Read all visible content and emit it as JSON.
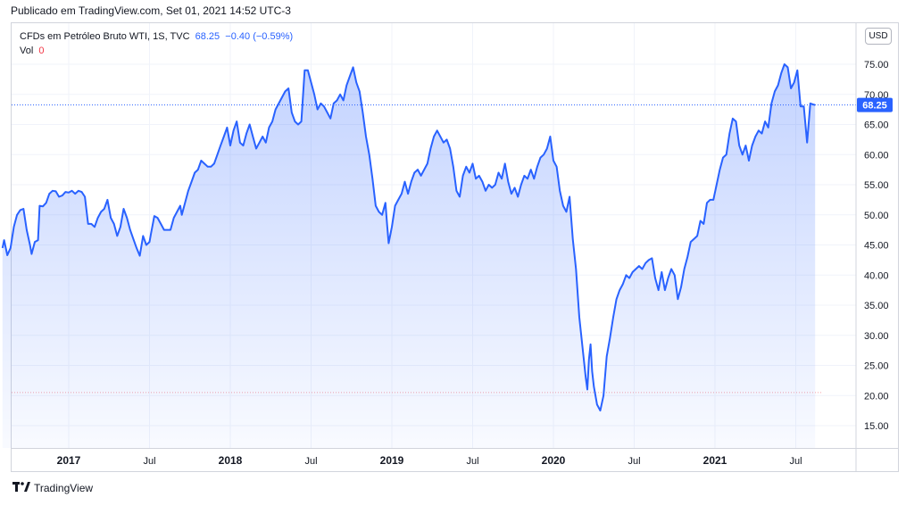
{
  "published": "Publicado em TradingView.com, Set 01, 2021 14:52 UTC-3",
  "legend": {
    "symbol": "CFDs em Petróleo Bruto WTI, 1S, TVC",
    "last": "68.25",
    "change": "−0.40",
    "change_pct": "(−0.59%)",
    "vol_label": "Vol",
    "vol_value": "0"
  },
  "currency_button": "USD",
  "last_price_label": "68.25",
  "footer": {
    "logo_icon": "tradingview-logo-icon",
    "brand": "TradingView"
  },
  "colors": {
    "line": "#2962ff",
    "fill": "#2962ff",
    "last_price_bg": "#2962ff",
    "axis_text": "#131722",
    "grid": "#f0f3fa",
    "dotted_red": "#f7a1a8"
  },
  "chart_data": {
    "type": "area",
    "title": "CFDs em Petróleo Bruto WTI, 1S, TVC",
    "xlabel": "",
    "ylabel": "",
    "ylim": [
      12,
      79
    ],
    "y_ticks": [
      15,
      20,
      25,
      30,
      35,
      40,
      45,
      50,
      55,
      60,
      65,
      70,
      75
    ],
    "y_tick_labels": [
      "15.00",
      "20.00",
      "25.00",
      "30.00",
      "35.00",
      "40.00",
      "45.00",
      "50.00",
      "55.00",
      "60.00",
      "65.00",
      "70.00",
      "75.00"
    ],
    "x_ticks": [
      {
        "t": 2017.0,
        "label": "2017"
      },
      {
        "t": 2017.5,
        "label": "Jul"
      },
      {
        "t": 2018.0,
        "label": "2018"
      },
      {
        "t": 2018.5,
        "label": "Jul"
      },
      {
        "t": 2019.0,
        "label": "2019"
      },
      {
        "t": 2019.5,
        "label": "Jul"
      },
      {
        "t": 2020.0,
        "label": "2020"
      },
      {
        "t": 2020.5,
        "label": "Jul"
      },
      {
        "t": 2021.0,
        "label": "2021"
      },
      {
        "t": 2021.5,
        "label": "Jul"
      }
    ],
    "xlim": [
      2016.59,
      2022.0
    ],
    "last_price": 68.25,
    "reference_line": 20.5,
    "grid": true,
    "series": [
      {
        "name": "",
        "points": [
          [
            2016.59,
            44.5
          ],
          [
            2016.6,
            45.8
          ],
          [
            2016.62,
            43.3
          ],
          [
            2016.64,
            44.5
          ],
          [
            2016.66,
            48.0
          ],
          [
            2016.68,
            50.0
          ],
          [
            2016.7,
            50.8
          ],
          [
            2016.72,
            51.0
          ],
          [
            2016.74,
            47.5
          ],
          [
            2016.76,
            45.0
          ],
          [
            2016.77,
            43.5
          ],
          [
            2016.79,
            45.5
          ],
          [
            2016.81,
            45.8
          ],
          [
            2016.82,
            51.5
          ],
          [
            2016.84,
            51.4
          ],
          [
            2016.86,
            52.0
          ],
          [
            2016.88,
            53.5
          ],
          [
            2016.9,
            54.0
          ],
          [
            2016.92,
            53.9
          ],
          [
            2016.94,
            53.0
          ],
          [
            2016.96,
            53.2
          ],
          [
            2016.98,
            53.8
          ],
          [
            2017.0,
            53.7
          ],
          [
            2017.02,
            54.0
          ],
          [
            2017.04,
            53.5
          ],
          [
            2017.06,
            54.0
          ],
          [
            2017.08,
            53.8
          ],
          [
            2017.1,
            53.0
          ],
          [
            2017.12,
            48.5
          ],
          [
            2017.14,
            48.5
          ],
          [
            2017.16,
            48.0
          ],
          [
            2017.18,
            49.5
          ],
          [
            2017.2,
            50.5
          ],
          [
            2017.22,
            51.0
          ],
          [
            2017.24,
            52.5
          ],
          [
            2017.26,
            49.5
          ],
          [
            2017.28,
            48.5
          ],
          [
            2017.3,
            46.5
          ],
          [
            2017.32,
            48.0
          ],
          [
            2017.34,
            51.0
          ],
          [
            2017.36,
            49.5
          ],
          [
            2017.38,
            47.5
          ],
          [
            2017.4,
            46.0
          ],
          [
            2017.42,
            44.5
          ],
          [
            2017.44,
            43.2
          ],
          [
            2017.46,
            46.5
          ],
          [
            2017.48,
            45.0
          ],
          [
            2017.5,
            45.5
          ],
          [
            2017.51,
            47.0
          ],
          [
            2017.53,
            49.8
          ],
          [
            2017.55,
            49.5
          ],
          [
            2017.57,
            48.5
          ],
          [
            2017.59,
            47.5
          ],
          [
            2017.61,
            47.5
          ],
          [
            2017.63,
            47.5
          ],
          [
            2017.65,
            49.5
          ],
          [
            2017.67,
            50.5
          ],
          [
            2017.69,
            51.5
          ],
          [
            2017.7,
            50.0
          ],
          [
            2017.72,
            52.0
          ],
          [
            2017.74,
            54.0
          ],
          [
            2017.76,
            55.5
          ],
          [
            2017.78,
            57.0
          ],
          [
            2017.8,
            57.5
          ],
          [
            2017.82,
            59.0
          ],
          [
            2017.84,
            58.5
          ],
          [
            2017.86,
            58.0
          ],
          [
            2017.88,
            58.0
          ],
          [
            2017.9,
            58.5
          ],
          [
            2017.92,
            60.0
          ],
          [
            2017.94,
            61.5
          ],
          [
            2017.96,
            63.0
          ],
          [
            2017.98,
            64.5
          ],
          [
            2018.0,
            61.5
          ],
          [
            2018.02,
            64.0
          ],
          [
            2018.04,
            65.5
          ],
          [
            2018.06,
            62.0
          ],
          [
            2018.08,
            61.5
          ],
          [
            2018.1,
            63.5
          ],
          [
            2018.12,
            65.0
          ],
          [
            2018.14,
            63.0
          ],
          [
            2018.16,
            61.0
          ],
          [
            2018.18,
            62.0
          ],
          [
            2018.2,
            63.0
          ],
          [
            2018.22,
            62.0
          ],
          [
            2018.24,
            64.5
          ],
          [
            2018.26,
            65.5
          ],
          [
            2018.28,
            67.5
          ],
          [
            2018.3,
            68.5
          ],
          [
            2018.32,
            69.5
          ],
          [
            2018.34,
            70.5
          ],
          [
            2018.36,
            71.0
          ],
          [
            2018.38,
            67.0
          ],
          [
            2018.4,
            65.5
          ],
          [
            2018.42,
            65.0
          ],
          [
            2018.44,
            65.5
          ],
          [
            2018.46,
            74.0
          ],
          [
            2018.48,
            74.0
          ],
          [
            2018.5,
            72.0
          ],
          [
            2018.52,
            70.0
          ],
          [
            2018.54,
            67.5
          ],
          [
            2018.56,
            68.5
          ],
          [
            2018.58,
            68.0
          ],
          [
            2018.6,
            67.0
          ],
          [
            2018.62,
            66.0
          ],
          [
            2018.64,
            68.5
          ],
          [
            2018.66,
            69.0
          ],
          [
            2018.68,
            70.0
          ],
          [
            2018.7,
            69.0
          ],
          [
            2018.72,
            71.5
          ],
          [
            2018.74,
            73.0
          ],
          [
            2018.76,
            74.5
          ],
          [
            2018.78,
            72.0
          ],
          [
            2018.8,
            70.5
          ],
          [
            2018.82,
            67.0
          ],
          [
            2018.84,
            63.0
          ],
          [
            2018.86,
            60.0
          ],
          [
            2018.88,
            56.0
          ],
          [
            2018.9,
            51.5
          ],
          [
            2018.92,
            50.5
          ],
          [
            2018.94,
            50.0
          ],
          [
            2018.96,
            52.0
          ],
          [
            2018.97,
            48.5
          ],
          [
            2018.98,
            45.3
          ],
          [
            2019.0,
            48.0
          ],
          [
            2019.02,
            51.5
          ],
          [
            2019.04,
            52.5
          ],
          [
            2019.06,
            53.5
          ],
          [
            2019.08,
            55.5
          ],
          [
            2019.1,
            53.5
          ],
          [
            2019.12,
            55.5
          ],
          [
            2019.14,
            57.0
          ],
          [
            2019.16,
            57.5
          ],
          [
            2019.18,
            56.5
          ],
          [
            2019.2,
            57.5
          ],
          [
            2019.22,
            58.5
          ],
          [
            2019.24,
            61.0
          ],
          [
            2019.26,
            63.0
          ],
          [
            2019.28,
            64.0
          ],
          [
            2019.3,
            63.0
          ],
          [
            2019.32,
            62.0
          ],
          [
            2019.34,
            62.5
          ],
          [
            2019.36,
            61.0
          ],
          [
            2019.38,
            58.0
          ],
          [
            2019.4,
            54.0
          ],
          [
            2019.42,
            53.0
          ],
          [
            2019.44,
            56.5
          ],
          [
            2019.46,
            58.0
          ],
          [
            2019.48,
            57.0
          ],
          [
            2019.5,
            58.5
          ],
          [
            2019.52,
            56.0
          ],
          [
            2019.54,
            56.5
          ],
          [
            2019.56,
            55.5
          ],
          [
            2019.58,
            54.0
          ],
          [
            2019.6,
            55.0
          ],
          [
            2019.62,
            54.5
          ],
          [
            2019.64,
            55.0
          ],
          [
            2019.66,
            57.0
          ],
          [
            2019.68,
            56.0
          ],
          [
            2019.7,
            58.5
          ],
          [
            2019.72,
            55.5
          ],
          [
            2019.74,
            53.5
          ],
          [
            2019.76,
            54.5
          ],
          [
            2019.78,
            53.0
          ],
          [
            2019.8,
            55.0
          ],
          [
            2019.82,
            56.5
          ],
          [
            2019.84,
            56.0
          ],
          [
            2019.86,
            57.5
          ],
          [
            2019.88,
            56.0
          ],
          [
            2019.9,
            58.0
          ],
          [
            2019.92,
            59.5
          ],
          [
            2019.94,
            60.0
          ],
          [
            2019.96,
            61.0
          ],
          [
            2019.98,
            63.0
          ],
          [
            2020.0,
            59.0
          ],
          [
            2020.02,
            58.0
          ],
          [
            2020.04,
            54.0
          ],
          [
            2020.06,
            51.5
          ],
          [
            2020.08,
            50.5
          ],
          [
            2020.1,
            53.0
          ],
          [
            2020.12,
            46.0
          ],
          [
            2020.14,
            41.0
          ],
          [
            2020.16,
            33.0
          ],
          [
            2020.18,
            28.0
          ],
          [
            2020.2,
            23.0
          ],
          [
            2020.21,
            21.0
          ],
          [
            2020.22,
            26.0
          ],
          [
            2020.23,
            28.5
          ],
          [
            2020.24,
            24.0
          ],
          [
            2020.25,
            21.5
          ],
          [
            2020.27,
            18.5
          ],
          [
            2020.29,
            17.5
          ],
          [
            2020.31,
            20.0
          ],
          [
            2020.33,
            26.5
          ],
          [
            2020.35,
            29.5
          ],
          [
            2020.37,
            33.0
          ],
          [
            2020.39,
            36.0
          ],
          [
            2020.41,
            37.5
          ],
          [
            2020.43,
            38.5
          ],
          [
            2020.45,
            40.0
          ],
          [
            2020.47,
            39.5
          ],
          [
            2020.49,
            40.5
          ],
          [
            2020.51,
            41.0
          ],
          [
            2020.53,
            41.5
          ],
          [
            2020.55,
            41.0
          ],
          [
            2020.57,
            42.0
          ],
          [
            2020.59,
            42.5
          ],
          [
            2020.61,
            42.8
          ],
          [
            2020.63,
            39.5
          ],
          [
            2020.65,
            37.5
          ],
          [
            2020.67,
            40.5
          ],
          [
            2020.69,
            37.5
          ],
          [
            2020.71,
            39.5
          ],
          [
            2020.73,
            41.0
          ],
          [
            2020.75,
            40.0
          ],
          [
            2020.77,
            36.0
          ],
          [
            2020.79,
            38.0
          ],
          [
            2020.81,
            41.0
          ],
          [
            2020.83,
            43.0
          ],
          [
            2020.85,
            45.5
          ],
          [
            2020.87,
            46.0
          ],
          [
            2020.89,
            46.5
          ],
          [
            2020.91,
            49.0
          ],
          [
            2020.93,
            48.5
          ],
          [
            2020.95,
            52.0
          ],
          [
            2020.97,
            52.5
          ],
          [
            2020.99,
            52.5
          ],
          [
            2021.01,
            55.0
          ],
          [
            2021.03,
            57.5
          ],
          [
            2021.05,
            59.5
          ],
          [
            2021.07,
            60.0
          ],
          [
            2021.09,
            63.5
          ],
          [
            2021.11,
            66.0
          ],
          [
            2021.13,
            65.5
          ],
          [
            2021.15,
            61.5
          ],
          [
            2021.17,
            60.0
          ],
          [
            2021.19,
            61.5
          ],
          [
            2021.21,
            59.0
          ],
          [
            2021.23,
            61.5
          ],
          [
            2021.25,
            63.0
          ],
          [
            2021.27,
            64.0
          ],
          [
            2021.29,
            63.5
          ],
          [
            2021.31,
            65.5
          ],
          [
            2021.33,
            64.5
          ],
          [
            2021.35,
            68.5
          ],
          [
            2021.37,
            70.5
          ],
          [
            2021.39,
            71.5
          ],
          [
            2021.41,
            73.5
          ],
          [
            2021.43,
            75.0
          ],
          [
            2021.45,
            74.5
          ],
          [
            2021.47,
            71.0
          ],
          [
            2021.49,
            72.0
          ],
          [
            2021.51,
            74.0
          ],
          [
            2021.53,
            68.0
          ],
          [
            2021.55,
            68.0
          ],
          [
            2021.57,
            62.0
          ],
          [
            2021.59,
            68.5
          ],
          [
            2021.61,
            68.3
          ],
          [
            2021.62,
            68.25
          ]
        ]
      }
    ]
  }
}
